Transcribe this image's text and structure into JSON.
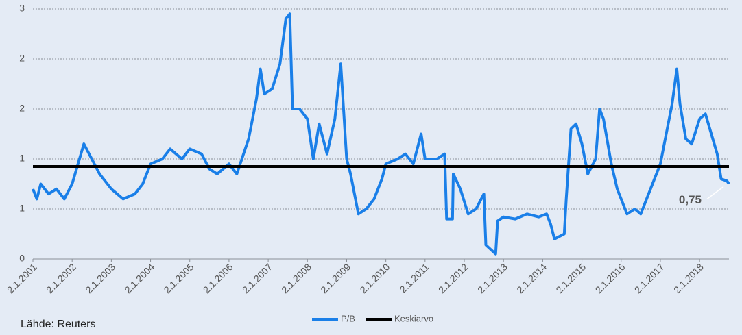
{
  "chart_data": {
    "type": "line",
    "x": [
      2001.0,
      2001.1,
      2001.2,
      2001.4,
      2001.6,
      2001.8,
      2002.0,
      2002.3,
      2002.5,
      2002.7,
      2003.0,
      2003.3,
      2003.6,
      2003.8,
      2004.0,
      2004.3,
      2004.5,
      2004.8,
      2005.0,
      2005.3,
      2005.5,
      2005.7,
      2006.0,
      2006.2,
      2006.5,
      2006.7,
      2006.8,
      2006.9,
      2007.1,
      2007.3,
      2007.45,
      2007.55,
      2007.62,
      2007.8,
      2008.0,
      2008.15,
      2008.3,
      2008.5,
      2008.7,
      2008.85,
      2009.0,
      2009.1,
      2009.3,
      2009.5,
      2009.7,
      2009.9,
      2010.0,
      2010.3,
      2010.5,
      2010.7,
      2010.9,
      2011.0,
      2011.3,
      2011.5,
      2011.55,
      2011.7,
      2011.72,
      2011.9,
      2012.1,
      2012.3,
      2012.5,
      2012.55,
      2012.8,
      2012.85,
      2013.0,
      2013.3,
      2013.6,
      2013.9,
      2014.1,
      2014.2,
      2014.3,
      2014.55,
      2014.6,
      2014.72,
      2014.85,
      2015.0,
      2015.15,
      2015.35,
      2015.45,
      2015.55,
      2015.75,
      2015.9,
      2016.0,
      2016.15,
      2016.35,
      2016.5,
      2016.65,
      2016.8,
      2017.0,
      2017.15,
      2017.3,
      2017.42,
      2017.5,
      2017.65,
      2017.8,
      2018.0,
      2018.15,
      2018.3,
      2018.45,
      2018.55,
      2018.7,
      2018.75
    ],
    "series": [
      {
        "name": "P/B",
        "color": "#1a7fe8",
        "values": [
          0.7,
          0.6,
          0.75,
          0.65,
          0.7,
          0.6,
          0.75,
          1.15,
          1.0,
          0.85,
          0.7,
          0.6,
          0.65,
          0.75,
          0.95,
          1.0,
          1.1,
          1.0,
          1.1,
          1.05,
          0.9,
          0.85,
          0.95,
          0.85,
          1.2,
          1.6,
          1.9,
          1.65,
          1.7,
          1.95,
          2.4,
          2.45,
          1.5,
          1.5,
          1.4,
          1.0,
          1.35,
          1.05,
          1.4,
          1.95,
          1.0,
          0.85,
          0.45,
          0.5,
          0.6,
          0.8,
          0.95,
          1.0,
          1.05,
          0.95,
          1.25,
          1.0,
          1.0,
          1.05,
          0.4,
          0.4,
          0.85,
          0.7,
          0.45,
          0.5,
          0.65,
          0.14,
          0.05,
          0.38,
          0.42,
          0.4,
          0.45,
          0.42,
          0.45,
          0.35,
          0.2,
          0.25,
          0.6,
          1.3,
          1.35,
          1.15,
          0.85,
          1.0,
          1.5,
          1.4,
          0.95,
          0.7,
          0.6,
          0.45,
          0.5,
          0.45,
          0.6,
          0.75,
          0.95,
          1.25,
          1.55,
          1.9,
          1.55,
          1.2,
          1.15,
          1.4,
          1.45,
          1.25,
          1.05,
          0.8,
          0.78,
          0.75
        ]
      }
    ],
    "reference_line": {
      "name": "Keskiarvo",
      "value": 0.925,
      "color": "#000000"
    },
    "annotation": "0,75",
    "source": "Lähde: Reuters",
    "xlim": [
      2001,
      2018.75
    ],
    "ylim": [
      0,
      2.5
    ],
    "yticks": [
      0,
      {
        "value": 0.5,
        "label": "1"
      },
      1,
      {
        "value": 1.5,
        "label": "2"
      },
      2,
      {
        "value": 2.5,
        "label": "3"
      }
    ],
    "xticks": [
      {
        "value": 2001,
        "label": "2.1.2001"
      },
      {
        "value": 2002,
        "label": "2.1.2002"
      },
      {
        "value": 2003,
        "label": "2.1.2003"
      },
      {
        "value": 2004,
        "label": "2.1.2004"
      },
      {
        "value": 2005,
        "label": "2.1.2005"
      },
      {
        "value": 2006,
        "label": "2.1.2006"
      },
      {
        "value": 2007,
        "label": "2.1.2007"
      },
      {
        "value": 2008,
        "label": "2.1.2008"
      },
      {
        "value": 2009,
        "label": "2.1.2009"
      },
      {
        "value": 2010,
        "label": "2.1.2010"
      },
      {
        "value": 2011,
        "label": "2.1.2011"
      },
      {
        "value": 2012,
        "label": "2.1.2012"
      },
      {
        "value": 2013,
        "label": "2.1.2013"
      },
      {
        "value": 2014,
        "label": "2.1.2014"
      },
      {
        "value": 2015,
        "label": "2.1.2015"
      },
      {
        "value": 2016,
        "label": "2.1.2016"
      },
      {
        "value": 2017,
        "label": "2.1.2017"
      },
      {
        "value": 2018,
        "label": "2.1.2018"
      }
    ],
    "grid": true
  }
}
